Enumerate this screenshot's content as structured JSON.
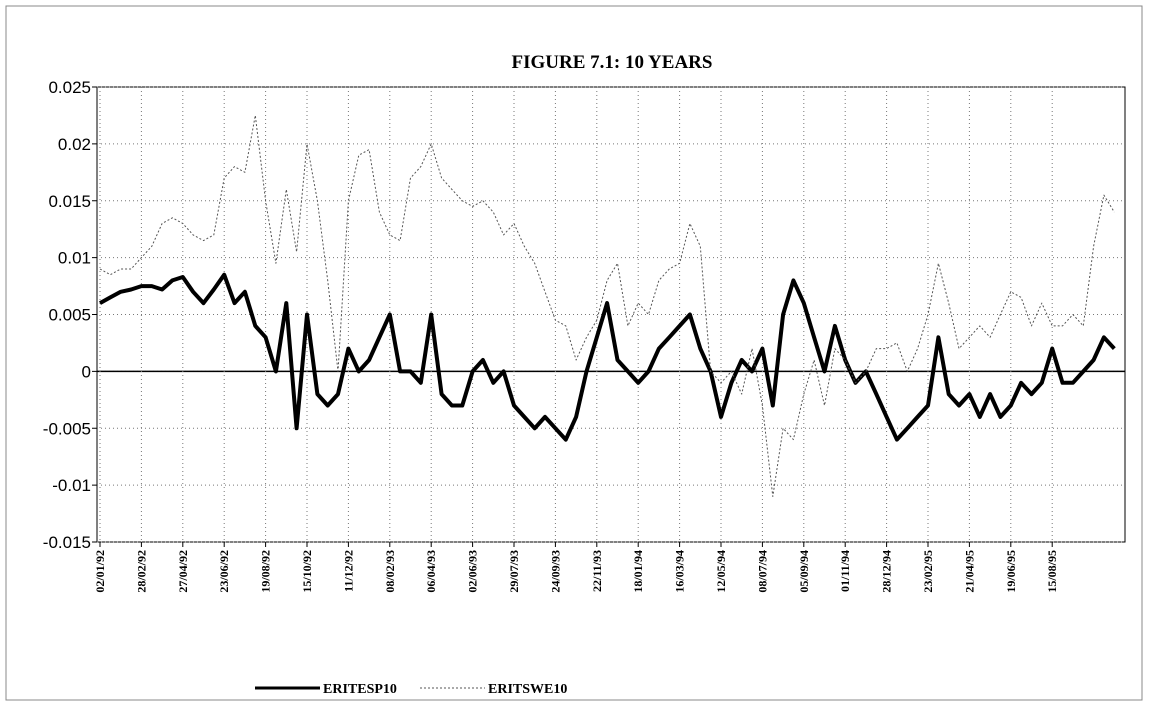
{
  "chart_data": {
    "type": "line",
    "title": "FIGURE 7.1: 10 YEARS",
    "categories": [
      "02/01/92",
      null,
      null,
      null,
      "28/02/92",
      null,
      null,
      null,
      "27/04/92",
      null,
      null,
      null,
      "23/06/92",
      null,
      null,
      null,
      "19/08/92",
      null,
      null,
      null,
      "15/10/92",
      null,
      null,
      null,
      "11/12/92",
      null,
      null,
      null,
      "08/02/93",
      null,
      null,
      null,
      "06/04/93",
      null,
      null,
      null,
      "02/06/93",
      null,
      null,
      null,
      "29/07/93",
      null,
      null,
      null,
      "24/09/93",
      null,
      null,
      null,
      "22/11/93",
      null,
      null,
      null,
      "18/01/94",
      null,
      null,
      null,
      "16/03/94",
      null,
      null,
      null,
      "12/05/94",
      null,
      null,
      null,
      "08/07/94",
      null,
      null,
      null,
      "05/09/94",
      null,
      null,
      null,
      "01/11/94",
      null,
      null,
      null,
      "28/12/94",
      null,
      null,
      null,
      "23/02/95",
      null,
      null,
      null,
      "21/04/95",
      null,
      null,
      null,
      "19/06/95",
      null,
      null,
      null,
      "15/08/95",
      null,
      null,
      null,
      null,
      null,
      null
    ],
    "series": [
      {
        "name": "ERITESP10",
        "color": "#000000",
        "values": [
          0.006,
          0.0065,
          0.007,
          0.0072,
          0.0075,
          0.0075,
          0.0072,
          0.008,
          0.0083,
          0.007,
          0.006,
          0.0072,
          0.0085,
          0.006,
          0.007,
          0.004,
          0.003,
          0.0,
          0.006,
          -0.005,
          0.005,
          -0.002,
          -0.003,
          -0.002,
          0.002,
          0.0,
          0.001,
          0.003,
          0.005,
          0.0,
          0.0,
          -0.001,
          0.005,
          -0.002,
          -0.003,
          -0.003,
          0.0,
          0.001,
          -0.001,
          0.0,
          -0.003,
          -0.004,
          -0.005,
          -0.004,
          -0.005,
          -0.006,
          -0.004,
          0.0,
          0.003,
          0.006,
          0.001,
          0.0,
          -0.001,
          0.0,
          0.002,
          0.003,
          0.004,
          0.005,
          0.002,
          0.0,
          -0.004,
          -0.001,
          0.001,
          0.0,
          0.002,
          -0.003,
          0.005,
          0.008,
          0.006,
          0.003,
          0.0,
          0.004,
          0.001,
          -0.001,
          0.0,
          -0.002,
          -0.004,
          -0.006,
          -0.005,
          -0.004,
          -0.003,
          0.003,
          -0.002,
          -0.003,
          -0.002,
          -0.004,
          -0.002,
          -0.004,
          -0.003,
          -0.001,
          -0.002,
          -0.001,
          0.002,
          -0.001,
          -0.001,
          0.0,
          0.001,
          0.003,
          0.002
        ]
      },
      {
        "name": "ERITSWE10",
        "color": "#555555",
        "values": [
          0.009,
          0.0085,
          0.009,
          0.009,
          0.01,
          0.011,
          0.013,
          0.0135,
          0.013,
          0.012,
          0.0115,
          0.012,
          0.017,
          0.018,
          0.0175,
          0.0225,
          0.015,
          0.0095,
          0.016,
          0.0105,
          0.02,
          0.015,
          0.008,
          0.0,
          0.015,
          0.019,
          0.0195,
          0.014,
          0.012,
          0.0115,
          0.017,
          0.018,
          0.02,
          0.017,
          0.016,
          0.015,
          0.0145,
          0.015,
          0.014,
          0.012,
          0.013,
          0.011,
          0.0095,
          0.007,
          0.0045,
          0.004,
          0.001,
          0.003,
          0.0045,
          0.008,
          0.0095,
          0.004,
          0.006,
          0.005,
          0.008,
          0.009,
          0.0095,
          0.013,
          0.011,
          0.0,
          -0.001,
          0.0,
          -0.002,
          0.002,
          -0.003,
          -0.011,
          -0.005,
          -0.006,
          -0.002,
          0.001,
          -0.003,
          0.002,
          0.001,
          -0.001,
          0.0,
          0.002,
          0.002,
          0.0025,
          0.0,
          0.002,
          0.005,
          0.0095,
          0.006,
          0.002,
          0.003,
          0.004,
          0.003,
          0.005,
          0.007,
          0.0065,
          0.004,
          0.006,
          0.004,
          0.004,
          0.005,
          0.004,
          0.011,
          0.0155,
          0.014
        ]
      }
    ],
    "ylim": [
      -0.015,
      0.025
    ],
    "yticks": [
      0.025,
      0.02,
      0.015,
      0.01,
      0.005,
      0,
      -0.005,
      -0.01,
      -0.015
    ],
    "grid": true
  }
}
